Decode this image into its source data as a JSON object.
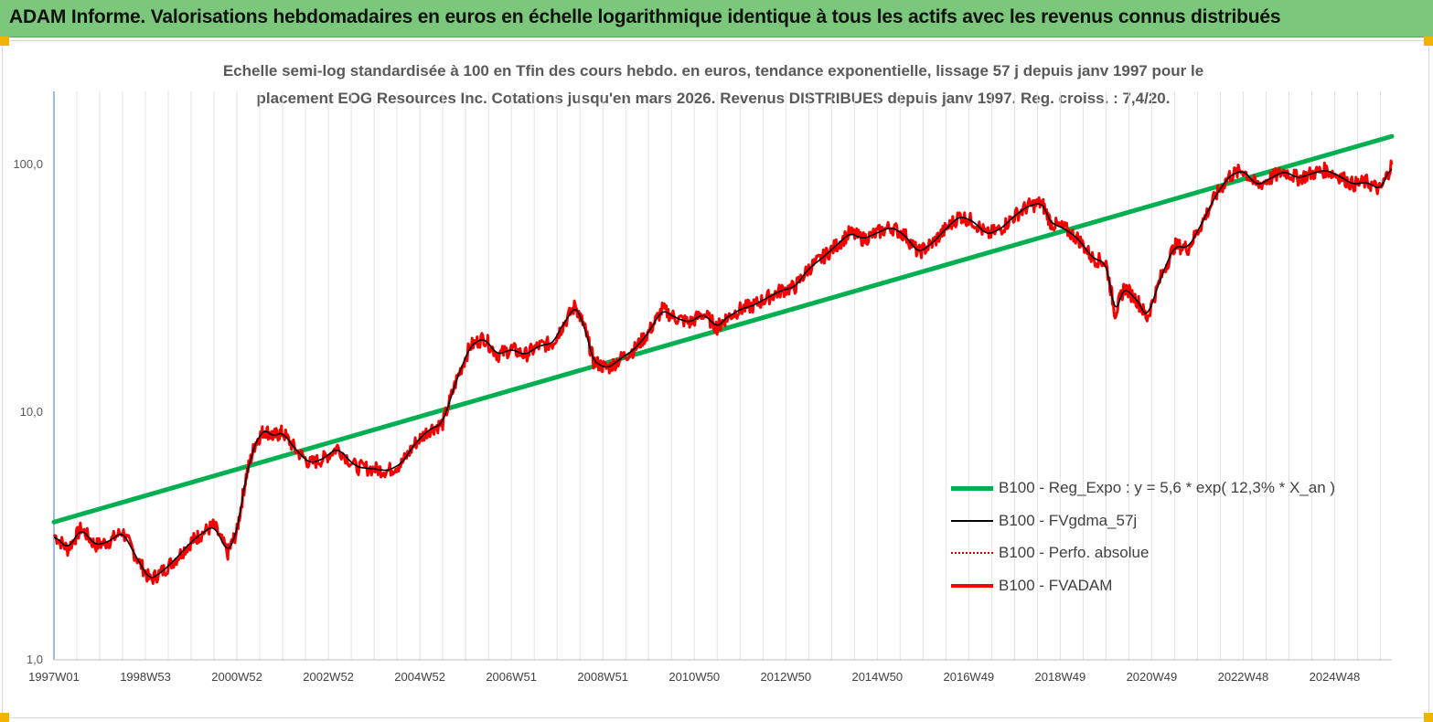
{
  "banner": {
    "title": "ADAM Informe. Valorisations hebdomadaires en euros en échelle logarithmique identique à tous les actifs avec les revenus connus distribués"
  },
  "colors": {
    "banner_bg": "#7bc87c",
    "regression": "#00b050",
    "fvgdma": "#000000",
    "perfo": "#c00000",
    "fvadam": "#ff0000",
    "corner_marks": "#f0b400"
  },
  "chart_data": {
    "type": "line",
    "title_line1": "Echelle semi-log standardisée à 100 en Tfin des cours hebdo. en euros, tendance exponentielle, lissage 57 j depuis janv 1997 pour le",
    "title_line2": "placement EOG Resources Inc. Cotations jusqu'en mars 2026. Revenus DISTRIBUES depuis janv 1997. Reg. croiss. : 7,4/20.",
    "y_scale": "log",
    "ylim": [
      1,
      200
    ],
    "y_ticks": [
      1,
      10,
      100
    ],
    "y_tick_labels": [
      "1,0",
      "10,0",
      "100,0"
    ],
    "x_range_years": [
      1997.0,
      2026.25
    ],
    "x_tick_labels": [
      "1997W01",
      "1998W53",
      "2000W52",
      "2002W52",
      "2004W52",
      "2006W51",
      "2008W51",
      "2010W50",
      "2012W50",
      "2014W50",
      "2016W49",
      "2018W49",
      "2020W49",
      "2022W48",
      "2024W48"
    ],
    "x_tick_years": [
      1997.0,
      1999.0,
      2001.0,
      2003.0,
      2005.0,
      2007.0,
      2009.0,
      2011.0,
      2013.0,
      2015.0,
      2017.0,
      2019.0,
      2021.0,
      2023.0,
      2025.0
    ],
    "grid": "vertical",
    "legend_position": "bottom-right",
    "regression": {
      "name": "B100 - Reg_Expo : y = 5,6 * exp( 12,3% *  X_an )",
      "start": [
        1997.0,
        3.6
      ],
      "end": [
        2026.25,
        130
      ]
    },
    "series": [
      {
        "name": "B100 - FVADAM",
        "x": [
          1997.0,
          1997.3,
          1997.6,
          1997.9,
          1998.2,
          1998.5,
          1998.8,
          1999.1,
          1999.4,
          1999.7,
          2000.0,
          2000.2,
          2000.5,
          2000.8,
          2001.0,
          2001.2,
          2001.4,
          2001.6,
          2001.8,
          2002.0,
          2002.3,
          2002.6,
          2002.9,
          2003.2,
          2003.6,
          2004.0,
          2004.3,
          2004.6,
          2004.9,
          2005.2,
          2005.5,
          2005.8,
          2006.1,
          2006.4,
          2006.7,
          2007.0,
          2007.3,
          2007.6,
          2007.9,
          2008.1,
          2008.4,
          2008.6,
          2008.8,
          2009.1,
          2009.4,
          2009.7,
          2010.0,
          2010.3,
          2010.6,
          2010.9,
          2011.2,
          2011.5,
          2011.7,
          2012.0,
          2012.3,
          2012.6,
          2012.9,
          2013.2,
          2013.5,
          2013.8,
          2014.1,
          2014.4,
          2014.7,
          2015.0,
          2015.3,
          2015.6,
          2015.9,
          2016.2,
          2016.5,
          2016.8,
          2017.1,
          2017.4,
          2017.7,
          2018.0,
          2018.3,
          2018.6,
          2018.8,
          2019.1,
          2019.4,
          2019.7,
          2020.0,
          2020.2,
          2020.4,
          2020.7,
          2020.9,
          2021.2,
          2021.5,
          2021.8,
          2022.1,
          2022.4,
          2022.7,
          2023.0,
          2023.3,
          2023.6,
          2023.9,
          2024.2,
          2024.5,
          2024.8,
          2025.1,
          2025.4,
          2025.7,
          2026.0,
          2026.25
        ],
        "y": [
          3.2,
          2.8,
          3.4,
          2.9,
          3.0,
          3.3,
          2.6,
          2.1,
          2.3,
          2.6,
          3.0,
          3.2,
          3.5,
          2.7,
          3.3,
          5.5,
          7.5,
          8.5,
          8.0,
          8.3,
          7.0,
          6.2,
          6.5,
          7.2,
          6.0,
          5.9,
          5.8,
          6.2,
          7.5,
          8.5,
          9.0,
          13.5,
          18.5,
          20.0,
          17.0,
          18.0,
          17.0,
          18.5,
          19.0,
          22.0,
          27.0,
          22.0,
          16.0,
          15.0,
          16.5,
          18.0,
          21.0,
          26.0,
          24.0,
          23.0,
          25.0,
          22.0,
          24.0,
          26.0,
          27.0,
          29.0,
          31.0,
          32.0,
          38.0,
          42.0,
          47.0,
          53.0,
          50.0,
          53.0,
          56.0,
          52.0,
          44.0,
          48.0,
          55.0,
          62.0,
          59.0,
          52.0,
          55.0,
          62.0,
          68.0,
          70.0,
          58.0,
          55.0,
          50.0,
          42.0,
          40.0,
          25.0,
          32.0,
          28.0,
          24.0,
          35.0,
          47.0,
          46.0,
          58.0,
          75.0,
          90.0,
          95.0,
          82.0,
          88.0,
          94.0,
          88.0,
          92.0,
          95.0,
          90.0,
          83.0,
          85.0,
          79.0,
          100.0
        ]
      },
      {
        "name": "B100 - FVgdma_57j"
      },
      {
        "name": "B100 - Perfo. absolue"
      }
    ]
  }
}
